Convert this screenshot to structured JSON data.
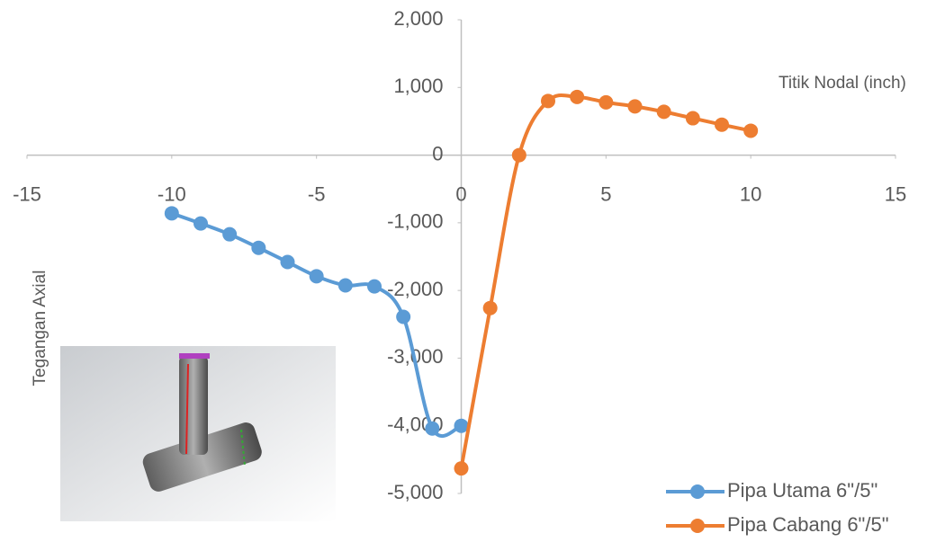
{
  "chart_data": {
    "type": "line",
    "x_label": "Titik Nodal (inch)",
    "y_label": "Tegangan Axial",
    "xlim": [
      -15,
      15
    ],
    "xticks": [
      -15,
      -10,
      -5,
      0,
      5,
      10,
      15
    ],
    "ylim": [
      -5000,
      2000
    ],
    "yticks": [
      {
        "value": 2000,
        "label": "2,000"
      },
      {
        "value": 1000,
        "label": "1,000"
      },
      0,
      {
        "value": -1000,
        "label": "-1,000"
      },
      {
        "value": -2000,
        "label": "-2,000"
      },
      {
        "value": -3000,
        "label": "-3,000"
      },
      {
        "value": -4000,
        "label": "-4,000"
      },
      {
        "value": -5000,
        "label": "-5,000"
      }
    ],
    "series": [
      {
        "name": "Pipa Utama 6\"/5\"",
        "color": "#5b9bd5",
        "x": [
          -10,
          -9,
          -8,
          -7,
          -6,
          -5,
          -4,
          -3,
          -2,
          -1,
          0
        ],
        "values": [
          -860,
          -1010,
          -1170,
          -1370,
          -1580,
          -1790,
          -1925,
          -1940,
          -2390,
          -4040,
          -4000
        ]
      },
      {
        "name": "Pipa Cabang 6\"/5\"",
        "color": "#ed7d31",
        "x": [
          0,
          1,
          2,
          3,
          4,
          5,
          6,
          7,
          8,
          9,
          10
        ],
        "values": [
          -4630,
          -2260,
          0,
          800,
          860,
          780,
          720,
          640,
          545,
          450,
          360
        ]
      }
    ]
  }
}
